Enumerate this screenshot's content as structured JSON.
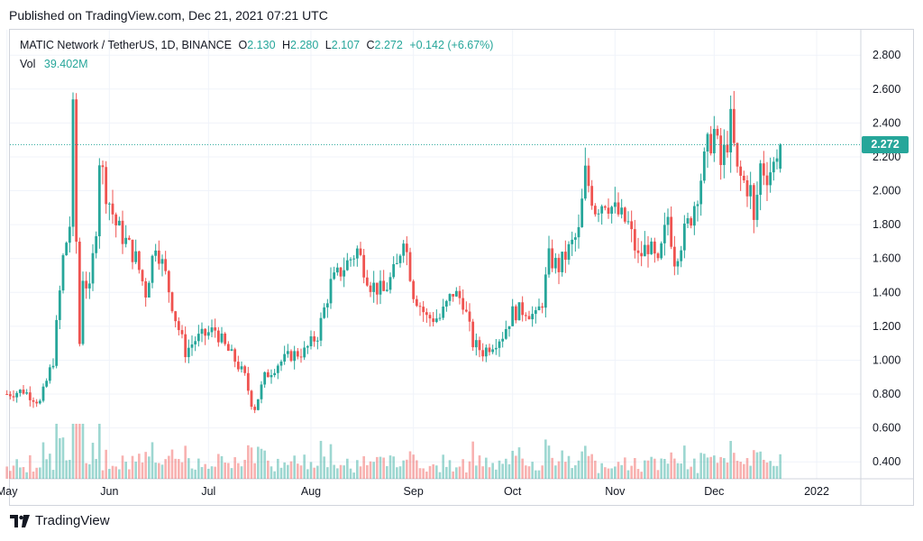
{
  "header": {
    "published": "Published on TradingView.com, Dec 21, 2021 07:21 UTC"
  },
  "legend": {
    "symbol": "MATIC Network / TetherUS, 1D, BINANCE",
    "o_label": "O",
    "o_value": "2.130",
    "h_label": "H",
    "h_value": "2.280",
    "l_label": "L",
    "l_value": "2.107",
    "c_label": "C",
    "c_value": "2.272",
    "change": "+0.142 (+6.67%)",
    "vol_label": "Vol",
    "vol_value": "39.402M"
  },
  "price_tag": "2.272",
  "brand": {
    "name": "TradingView"
  },
  "colors": {
    "up": "#26a69a",
    "down": "#ef5350",
    "grid": "#f0f3fa",
    "axis": "#d1d4dc",
    "text": "#131722"
  },
  "chart_data": {
    "type": "candlestick",
    "title": "MATIC Network / TetherUS, 1D, BINANCE",
    "ylim": [
      0.3,
      2.95
    ],
    "y_ticks": [
      0.4,
      0.6,
      0.8,
      1.0,
      1.2,
      1.4,
      1.6,
      1.8,
      2.0,
      2.2,
      2.4,
      2.6,
      2.8
    ],
    "y_tick_labels": [
      "0.400",
      "0.600",
      "0.800",
      "1.000",
      "1.200",
      "1.400",
      "1.600",
      "1.800",
      "2.000",
      "2.200",
      "2.400",
      "2.600",
      "2.800"
    ],
    "x_ticks": [
      {
        "label": "May",
        "day": 0
      },
      {
        "label": "Jun",
        "day": 31
      },
      {
        "label": "Jul",
        "day": 61
      },
      {
        "label": "Aug",
        "day": 92
      },
      {
        "label": "Sep",
        "day": 123
      },
      {
        "label": "Oct",
        "day": 153
      },
      {
        "label": "Nov",
        "day": 184
      },
      {
        "label": "Dec",
        "day": 214
      },
      {
        "label": "2022",
        "day": 245
      }
    ],
    "last_price": 2.272,
    "grid": true,
    "close_path": [
      [
        0,
        0.8
      ],
      [
        5,
        0.82
      ],
      [
        10,
        0.75
      ],
      [
        14,
        1.0
      ],
      [
        17,
        1.6
      ],
      [
        19,
        1.8
      ],
      [
        20,
        2.45
      ],
      [
        21,
        1.7
      ],
      [
        22,
        1.1
      ],
      [
        23,
        1.5
      ],
      [
        25,
        1.4
      ],
      [
        27,
        1.8
      ],
      [
        28,
        2.2
      ],
      [
        30,
        2.0
      ],
      [
        33,
        1.8
      ],
      [
        36,
        1.7
      ],
      [
        39,
        1.6
      ],
      [
        42,
        1.4
      ],
      [
        45,
        1.7
      ],
      [
        48,
        1.5
      ],
      [
        51,
        1.25
      ],
      [
        54,
        1.05
      ],
      [
        57,
        1.12
      ],
      [
        60,
        1.15
      ],
      [
        63,
        1.18
      ],
      [
        66,
        1.08
      ],
      [
        69,
        1.0
      ],
      [
        72,
        0.9
      ],
      [
        74,
        0.75
      ],
      [
        75,
        0.72
      ],
      [
        78,
        0.9
      ],
      [
        82,
        0.98
      ],
      [
        86,
        1.03
      ],
      [
        90,
        1.05
      ],
      [
        94,
        1.15
      ],
      [
        98,
        1.45
      ],
      [
        102,
        1.55
      ],
      [
        106,
        1.65
      ],
      [
        110,
        1.45
      ],
      [
        114,
        1.4
      ],
      [
        118,
        1.55
      ],
      [
        120,
        1.75
      ],
      [
        123,
        1.4
      ],
      [
        127,
        1.25
      ],
      [
        131,
        1.25
      ],
      [
        135,
        1.4
      ],
      [
        138,
        1.35
      ],
      [
        141,
        1.1
      ],
      [
        144,
        1.05
      ],
      [
        147,
        1.1
      ],
      [
        150,
        1.15
      ],
      [
        153,
        1.28
      ],
      [
        157,
        1.3
      ],
      [
        160,
        1.25
      ],
      [
        162,
        1.35
      ],
      [
        164,
        1.6
      ],
      [
        167,
        1.55
      ],
      [
        170,
        1.65
      ],
      [
        173,
        1.75
      ],
      [
        175,
        2.1
      ],
      [
        178,
        1.9
      ],
      [
        181,
        1.95
      ],
      [
        184,
        1.88
      ],
      [
        188,
        1.8
      ],
      [
        191,
        1.6
      ],
      [
        194,
        1.68
      ],
      [
        197,
        1.55
      ],
      [
        200,
        1.85
      ],
      [
        202,
        1.6
      ],
      [
        204,
        1.7
      ],
      [
        207,
        1.85
      ],
      [
        209,
        2.0
      ],
      [
        212,
        2.25
      ],
      [
        214,
        2.35
      ],
      [
        216,
        2.15
      ],
      [
        218,
        2.3
      ],
      [
        219,
        2.4
      ],
      [
        221,
        2.1
      ],
      [
        223,
        2.05
      ],
      [
        225,
        2.0
      ],
      [
        226,
        1.8
      ],
      [
        228,
        2.15
      ],
      [
        230,
        2.1
      ],
      [
        232,
        2.15
      ],
      [
        233,
        2.25
      ],
      [
        234,
        2.27
      ]
    ],
    "volume_ylim": [
      0,
      0.35
    ]
  }
}
